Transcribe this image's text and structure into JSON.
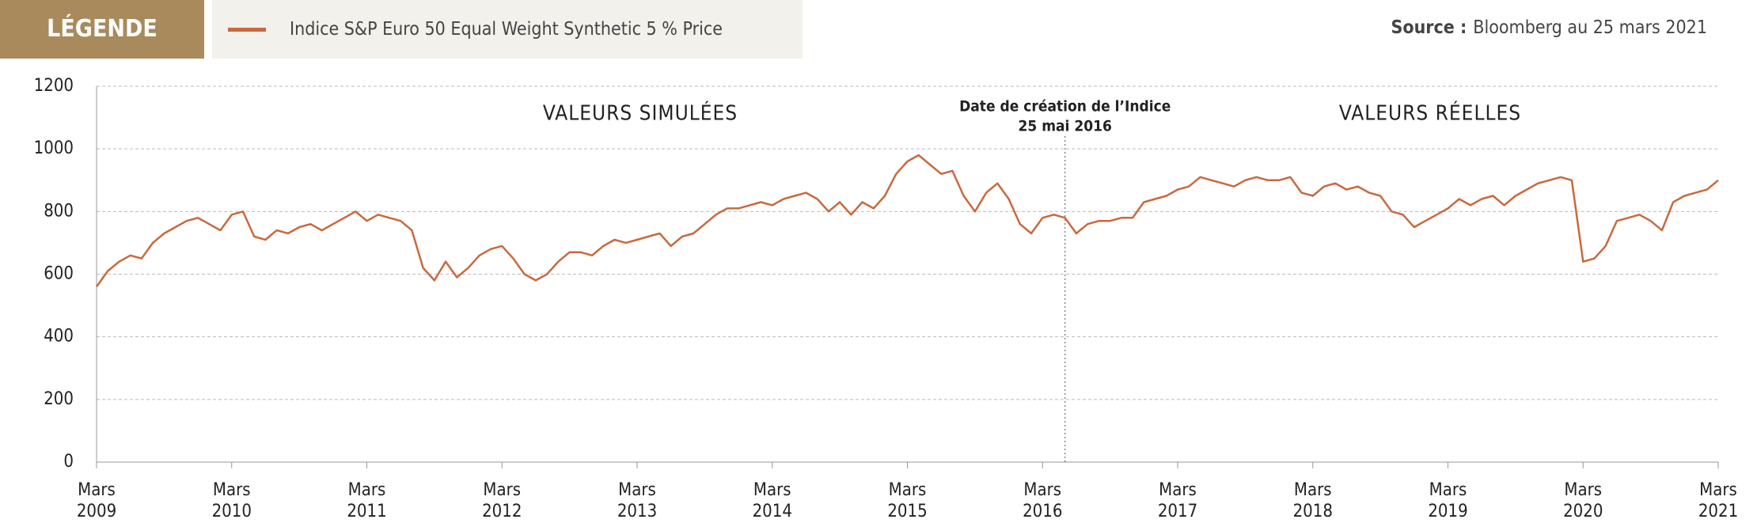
{
  "legend_title": "LÉGENDE",
  "source": {
    "label": "Source :",
    "text": "Bloomberg au 25 mars 2021"
  },
  "chart_data": {
    "type": "line",
    "x": [
      "2009-03",
      "2009-04",
      "2009-05",
      "2009-06",
      "2009-07",
      "2009-08",
      "2009-09",
      "2009-10",
      "2009-11",
      "2009-12",
      "2010-01",
      "2010-02",
      "2010-03",
      "2010-04",
      "2010-05",
      "2010-06",
      "2010-07",
      "2010-08",
      "2010-09",
      "2010-10",
      "2010-11",
      "2010-12",
      "2011-01",
      "2011-02",
      "2011-03",
      "2011-04",
      "2011-05",
      "2011-06",
      "2011-07",
      "2011-08",
      "2011-09",
      "2011-10",
      "2011-11",
      "2011-12",
      "2012-01",
      "2012-02",
      "2012-03",
      "2012-04",
      "2012-05",
      "2012-06",
      "2012-07",
      "2012-08",
      "2012-09",
      "2012-10",
      "2012-11",
      "2012-12",
      "2013-01",
      "2013-02",
      "2013-03",
      "2013-04",
      "2013-05",
      "2013-06",
      "2013-07",
      "2013-08",
      "2013-09",
      "2013-10",
      "2013-11",
      "2013-12",
      "2014-01",
      "2014-02",
      "2014-03",
      "2014-04",
      "2014-05",
      "2014-06",
      "2014-07",
      "2014-08",
      "2014-09",
      "2014-10",
      "2014-11",
      "2014-12",
      "2015-01",
      "2015-02",
      "2015-03",
      "2015-04",
      "2015-05",
      "2015-06",
      "2015-07",
      "2015-08",
      "2015-09",
      "2015-10",
      "2015-11",
      "2015-12",
      "2016-01",
      "2016-02",
      "2016-03",
      "2016-04",
      "2016-05",
      "2016-06",
      "2016-07",
      "2016-08",
      "2016-09",
      "2016-10",
      "2016-11",
      "2016-12",
      "2017-01",
      "2017-02",
      "2017-03",
      "2017-04",
      "2017-05",
      "2017-06",
      "2017-07",
      "2017-08",
      "2017-09",
      "2017-10",
      "2017-11",
      "2017-12",
      "2018-01",
      "2018-02",
      "2018-03",
      "2018-04",
      "2018-05",
      "2018-06",
      "2018-07",
      "2018-08",
      "2018-09",
      "2018-10",
      "2018-11",
      "2018-12",
      "2019-01",
      "2019-02",
      "2019-03",
      "2019-04",
      "2019-05",
      "2019-06",
      "2019-07",
      "2019-08",
      "2019-09",
      "2019-10",
      "2019-11",
      "2019-12",
      "2020-01",
      "2020-02",
      "2020-03",
      "2020-04",
      "2020-05",
      "2020-06",
      "2020-07",
      "2020-08",
      "2020-09",
      "2020-10",
      "2020-11",
      "2020-12",
      "2021-01",
      "2021-02",
      "2021-03"
    ],
    "series": [
      {
        "name": "Indice S&P Euro 50 Equal Weight Synthetic 5 % Price",
        "color": "#c8693f",
        "values": [
          560,
          610,
          640,
          660,
          650,
          700,
          730,
          750,
          770,
          780,
          760,
          740,
          790,
          800,
          720,
          710,
          740,
          730,
          750,
          760,
          740,
          760,
          780,
          800,
          770,
          790,
          780,
          770,
          740,
          620,
          580,
          640,
          590,
          620,
          660,
          680,
          690,
          650,
          600,
          580,
          600,
          640,
          670,
          670,
          660,
          690,
          710,
          700,
          710,
          720,
          730,
          690,
          720,
          730,
          760,
          790,
          810,
          810,
          820,
          830,
          820,
          840,
          850,
          860,
          840,
          800,
          830,
          790,
          830,
          810,
          850,
          920,
          960,
          980,
          950,
          920,
          930,
          850,
          800,
          860,
          890,
          840,
          760,
          730,
          780,
          790,
          780,
          730,
          760,
          770,
          770,
          780,
          780,
          830,
          840,
          850,
          870,
          880,
          910,
          900,
          890,
          880,
          900,
          910,
          900,
          900,
          910,
          860,
          850,
          880,
          890,
          870,
          880,
          860,
          850,
          800,
          790,
          750,
          770,
          790,
          810,
          840,
          820,
          840,
          850,
          820,
          850,
          870,
          890,
          900,
          910,
          900,
          640,
          650,
          690,
          770,
          780,
          790,
          770,
          740,
          830,
          850,
          860,
          870,
          900
        ]
      }
    ],
    "xlim": [
      "2009-03",
      "2021-03"
    ],
    "xticks": [
      {
        "value": "2009-03",
        "label": "Mars 2009"
      },
      {
        "value": "2010-03",
        "label": "Mars 2010"
      },
      {
        "value": "2011-03",
        "label": "Mars 2011"
      },
      {
        "value": "2012-03",
        "label": "Mars 2012"
      },
      {
        "value": "2013-03",
        "label": "Mars 2013"
      },
      {
        "value": "2014-03",
        "label": "Mars 2014"
      },
      {
        "value": "2015-03",
        "label": "Mars 2015"
      },
      {
        "value": "2016-03",
        "label": "Mars 2016"
      },
      {
        "value": "2017-03",
        "label": "Mars 2017"
      },
      {
        "value": "2018-03",
        "label": "Mars 2018"
      },
      {
        "value": "2019-03",
        "label": "Mars 2019"
      },
      {
        "value": "2020-03",
        "label": "Mars 2020"
      },
      {
        "value": "2021-03",
        "label": "Mars 2021"
      }
    ],
    "ylim": [
      0,
      1200
    ],
    "yticks": [
      0,
      200,
      400,
      600,
      800,
      1000,
      1200
    ],
    "grid": true,
    "annotations": [
      "VALEURS SIMULÉES",
      "VALEURS RÉELLES"
    ],
    "marker": {
      "x": "2016-05",
      "lines": [
        "Date de création de l’Indice",
        "25 mai 2016"
      ]
    }
  }
}
